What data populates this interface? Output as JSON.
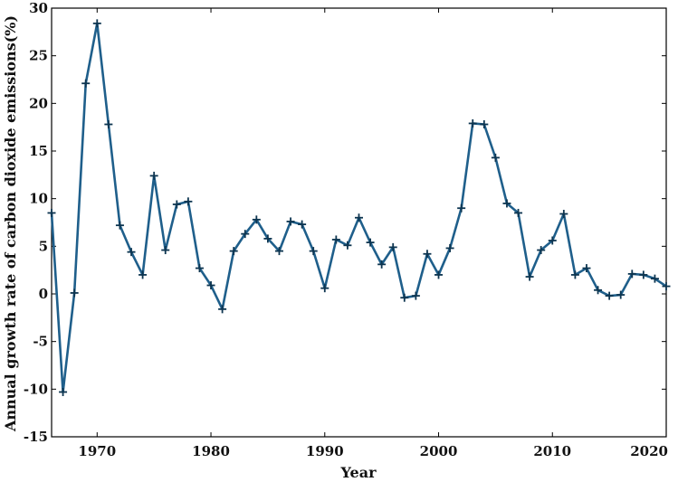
{
  "chart_data": {
    "type": "line",
    "title": "",
    "xlabel": "Year",
    "ylabel": "Annual growth rate of carbon dioxide emissions(%)",
    "xlim": [
      1966,
      2020
    ],
    "ylim": [
      -15,
      30
    ],
    "xticks": [
      1970,
      1980,
      1990,
      2000,
      2010,
      2020
    ],
    "yticks": [
      -15,
      -10,
      -5,
      0,
      5,
      10,
      15,
      20,
      25,
      30
    ],
    "grid": false,
    "legend": "none",
    "line_color": "#1f5f8b",
    "marker_color": "#0d3550",
    "marker": "plus",
    "series": [
      {
        "x": [
          1966,
          1967,
          1968,
          1969,
          1970,
          1971,
          1972,
          1973,
          1974,
          1975,
          1976,
          1977,
          1978,
          1979,
          1980,
          1981,
          1982,
          1983,
          1984,
          1985,
          1986,
          1987,
          1988,
          1989,
          1990,
          1991,
          1992,
          1993,
          1994,
          1995,
          1996,
          1997,
          1998,
          1999,
          2000,
          2001,
          2002,
          2003,
          2004,
          2005,
          2006,
          2007,
          2008,
          2009,
          2010,
          2011,
          2012,
          2013,
          2014,
          2015,
          2016,
          2017,
          2018,
          2019,
          2020
        ],
        "y": [
          8.5,
          -10.3,
          0.1,
          22.1,
          28.4,
          17.8,
          7.2,
          4.4,
          2.0,
          12.4,
          4.6,
          9.4,
          9.7,
          2.7,
          0.9,
          -1.6,
          4.5,
          6.3,
          7.8,
          5.8,
          4.5,
          7.6,
          7.3,
          4.5,
          0.6,
          5.7,
          5.1,
          8.0,
          5.4,
          3.1,
          4.9,
          -0.4,
          -0.2,
          4.2,
          2.0,
          4.8,
          9.0,
          17.9,
          17.8,
          14.3,
          9.5,
          8.5,
          1.8,
          4.6,
          5.6,
          8.4,
          2.0,
          2.7,
          0.4,
          -0.2,
          -0.1,
          2.1,
          2.0,
          1.6,
          0.8
        ]
      }
    ]
  }
}
